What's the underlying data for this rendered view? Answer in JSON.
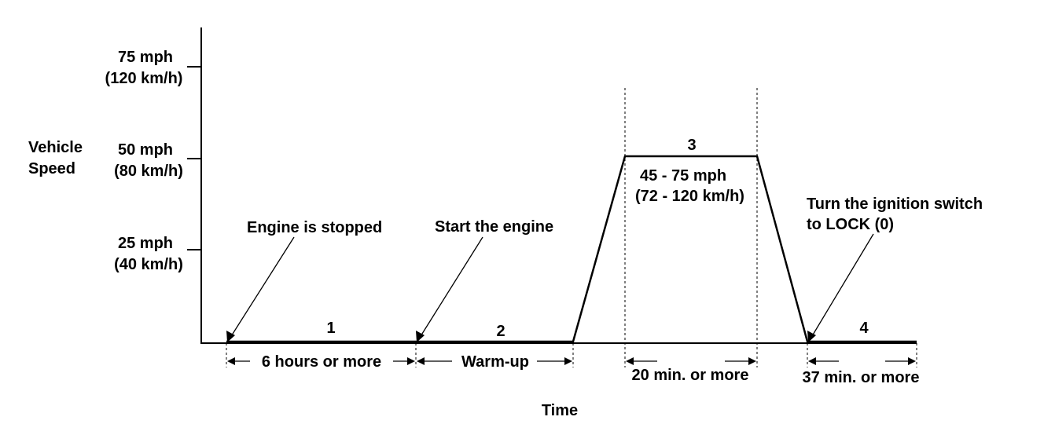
{
  "y_axis_label": [
    "Vehicle",
    "Speed"
  ],
  "x_axis_label": "Time",
  "y_ticks": [
    {
      "mph": "75 mph",
      "kmh": "(120 km/h)"
    },
    {
      "mph": "50 mph",
      "kmh": "(80 km/h)"
    },
    {
      "mph": "25 mph",
      "kmh": "(40 km/h)"
    }
  ],
  "steps": [
    "1",
    "2",
    "3",
    "4"
  ],
  "annotations": {
    "engine_stopped": "Engine is stopped",
    "start_engine": "Start the engine",
    "speed_range_mph": "45 - 75 mph",
    "speed_range_kmh": "(72 - 120 km/h)",
    "ignition_line1": "Turn the ignition switch",
    "ignition_line2": "to LOCK (0)"
  },
  "durations": {
    "stopped": "6 hours or more",
    "warmup": "Warm-up",
    "cruise": "20 min. or more",
    "final": "37 min. or more"
  }
}
